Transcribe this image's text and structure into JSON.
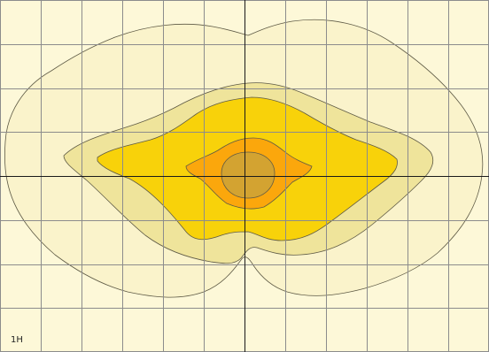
{
  "chart_data": {
    "type": "heatmap",
    "title": "",
    "xlabel": "",
    "ylabel": "",
    "grid": true,
    "grid_columns": 12,
    "grid_rows": 8,
    "corner_label": "1H",
    "background_color": "#fdf8d8",
    "grid_color": "#8c8c8c",
    "axis_color": "#1a1a1a",
    "contour_stroke_color": "#5e5a45",
    "levels": [
      {
        "fill": "#faf3cb"
      },
      {
        "fill": "#efe49b"
      },
      {
        "fill": "#f8d20a"
      },
      {
        "fill": "#fba70c"
      },
      {
        "fill": "#d3a331"
      }
    ]
  }
}
